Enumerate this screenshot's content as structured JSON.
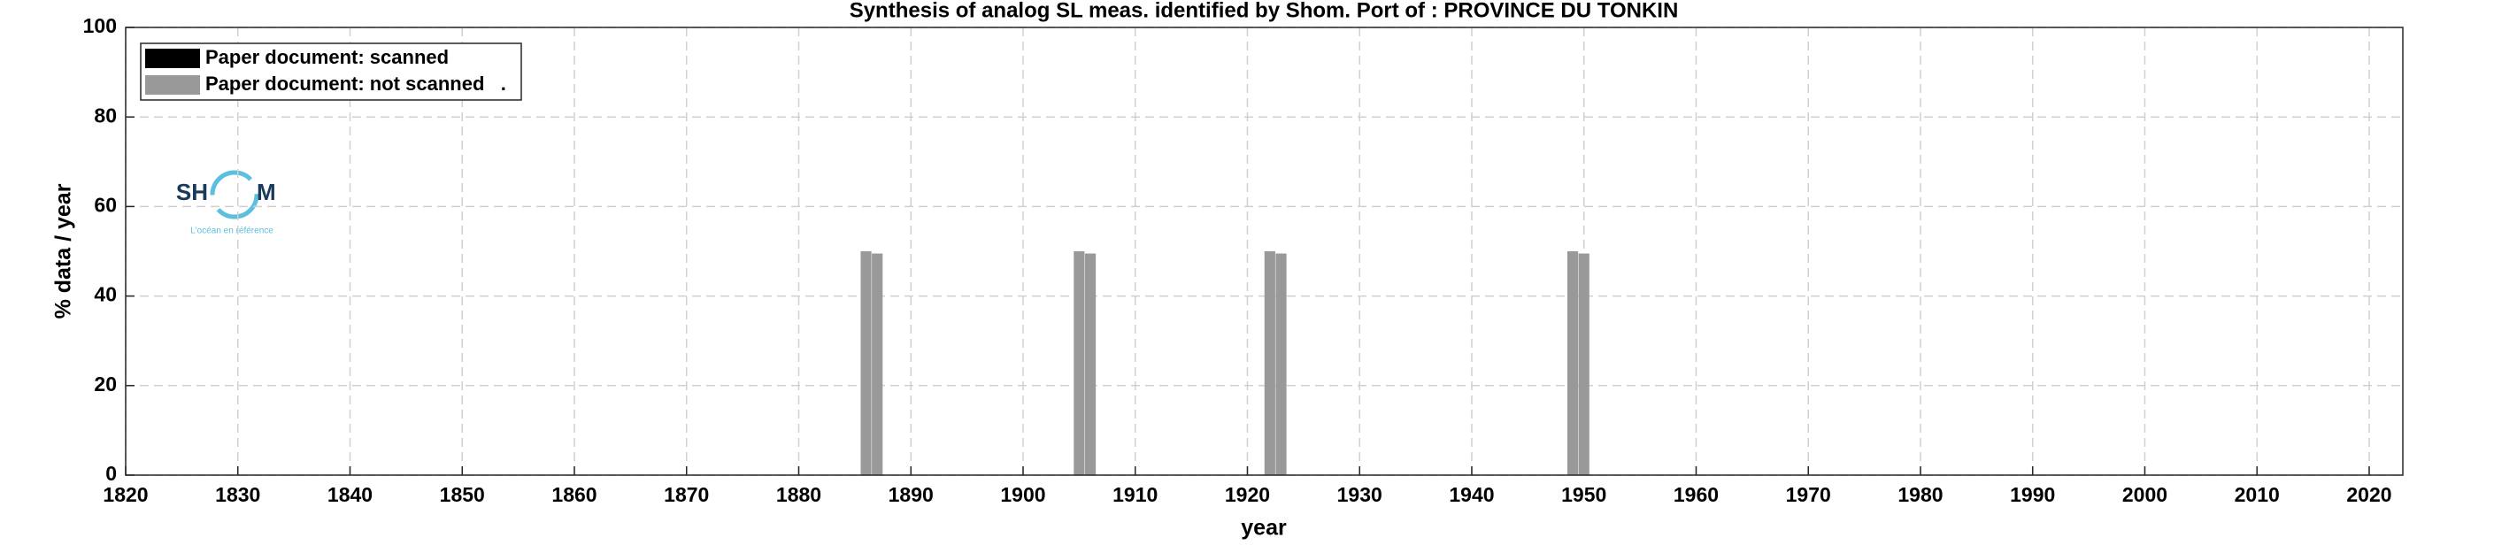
{
  "chart_data": {
    "type": "bar",
    "title": "Synthesis of analog SL meas. identified by Shom. Port of : PROVINCE DU TONKIN",
    "xlabel": "year",
    "ylabel": "% data / year",
    "x": [
      1886,
      1887,
      1905,
      1906,
      1922,
      1923,
      1949,
      1950
    ],
    "series": [
      {
        "name": "Paper document: scanned",
        "color": "#000000",
        "values": [
          0,
          0,
          0,
          0,
          0,
          0,
          0,
          0
        ]
      },
      {
        "name": "Paper document: not scanned   .",
        "color": "#999999",
        "values": [
          50,
          49.5,
          50,
          49.5,
          50,
          49.5,
          50,
          49.5
        ]
      }
    ],
    "stacked": true,
    "xlim": [
      1820,
      2023
    ],
    "xticks": [
      1820,
      1830,
      1840,
      1850,
      1860,
      1870,
      1880,
      1890,
      1900,
      1910,
      1920,
      1930,
      1940,
      1950,
      1960,
      1970,
      1980,
      1990,
      2000,
      2010,
      2020
    ],
    "ylim": [
      0,
      100
    ],
    "yticks": [
      0,
      20,
      40,
      60,
      80,
      100
    ],
    "grid": true,
    "legend": "upper left"
  },
  "logo": {
    "left": "SH",
    "right": "M",
    "tagline": "L'océan en référence"
  }
}
